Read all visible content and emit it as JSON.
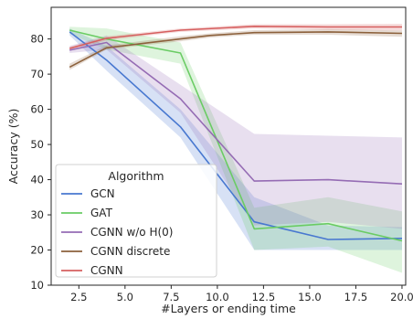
{
  "chart_data": {
    "type": "line",
    "xlabel": "#Layers or ending time",
    "ylabel": "Accuracy (%)",
    "xlim": [
      1.0,
      20.2
    ],
    "ylim": [
      10,
      89
    ],
    "xticks": [
      2.5,
      5.0,
      7.5,
      10.0,
      12.5,
      15.0,
      17.5,
      20.0
    ],
    "xtick_labels": [
      "2.5",
      "5.0",
      "7.5",
      "10.0",
      "12.5",
      "15.0",
      "17.5",
      "20.0"
    ],
    "yticks": [
      10,
      20,
      30,
      40,
      50,
      60,
      70,
      80
    ],
    "ytick_labels": [
      "10",
      "20",
      "30",
      "40",
      "50",
      "60",
      "70",
      "80"
    ],
    "grid": false,
    "legend": {
      "title": "Algorithm",
      "placement": "lower-left"
    },
    "series": [
      {
        "name": "GCN",
        "color": "#4878d0",
        "x": [
          2,
          4,
          8,
          12,
          16,
          20
        ],
        "values": [
          82,
          74,
          55,
          28,
          23,
          23.3
        ],
        "lower": [
          81,
          71,
          52,
          20,
          20,
          20
        ],
        "upper": [
          83,
          78,
          60,
          35,
          27,
          26.5
        ]
      },
      {
        "name": "GAT",
        "color": "#6acc64",
        "x": [
          2,
          4,
          8,
          12,
          16,
          20
        ],
        "values": [
          82.5,
          80,
          76,
          26,
          27.5,
          22.6
        ],
        "lower": [
          81.5,
          77,
          73,
          20,
          21,
          13.5
        ],
        "upper": [
          83.5,
          83,
          79,
          32,
          35,
          31
        ]
      },
      {
        "name": "CGNN w/o H(0)",
        "color": "#956cb4",
        "x": [
          2,
          4,
          8,
          12,
          16,
          20
        ],
        "values": [
          76.8,
          79,
          63,
          39.6,
          40,
          38.8
        ],
        "lower": [
          76,
          77,
          59,
          27,
          28,
          26
        ],
        "upper": [
          78,
          81,
          67,
          53,
          52.5,
          52
        ]
      },
      {
        "name": "CGNN discrete",
        "color": "#8c613c",
        "x": [
          2,
          4,
          8,
          9.6,
          12,
          16,
          20
        ],
        "values": [
          72,
          77.5,
          80,
          81,
          81.8,
          82,
          81.6
        ],
        "lower": [
          71.2,
          77,
          79.3,
          80.4,
          81.2,
          81.2,
          80.6
        ],
        "upper": [
          73,
          78.2,
          80.8,
          81.6,
          82.5,
          82.8,
          82.4
        ]
      },
      {
        "name": "CGNN",
        "color": "#d65f5f",
        "x": [
          2,
          4,
          8,
          12,
          16,
          20
        ],
        "values": [
          77.3,
          80.2,
          82.5,
          83.6,
          83.4,
          83.4
        ],
        "lower": [
          76.8,
          79.6,
          82,
          83,
          82.6,
          82.4
        ],
        "upper": [
          77.8,
          80.8,
          83,
          84.2,
          84.2,
          84.3
        ]
      }
    ]
  }
}
